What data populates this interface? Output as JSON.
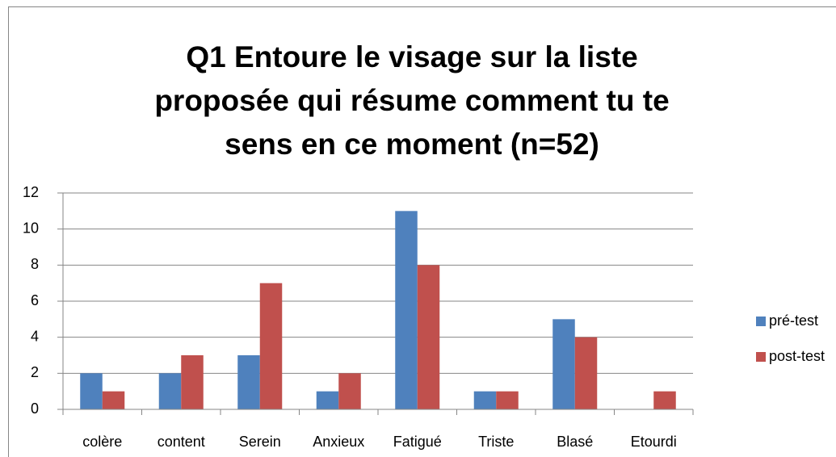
{
  "chart_data": {
    "type": "bar",
    "title": "Q1 Entoure le visage sur la liste proposée qui résume comment tu te sens en ce moment (n=52)",
    "categories": [
      "colère",
      "content",
      "Serein",
      "Anxieux",
      "Fatigué",
      "Triste",
      "Blasé",
      "Etourdi"
    ],
    "series": [
      {
        "name": "pré-test",
        "color": "#4f81bd",
        "values": [
          2,
          2,
          3,
          1,
          11,
          1,
          5,
          0
        ]
      },
      {
        "name": "post-test",
        "color": "#c0504d",
        "values": [
          1,
          3,
          7,
          2,
          8,
          1,
          4,
          1
        ]
      }
    ],
    "ylim": [
      0,
      12
    ],
    "yticks": [
      0,
      2,
      4,
      6,
      8,
      10,
      12
    ],
    "grid": true,
    "legend": "right"
  }
}
